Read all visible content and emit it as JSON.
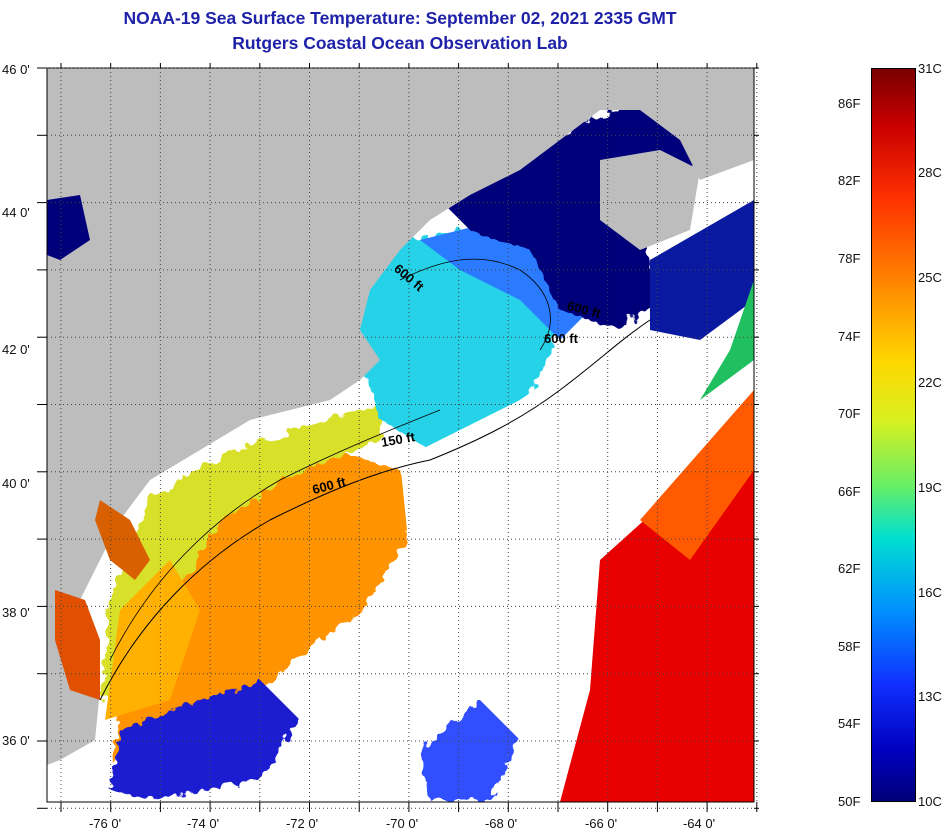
{
  "header": {
    "title": "NOAA-19 Sea Surface Temperature:  September 02, 2021 2335 GMT",
    "subtitle": "Rutgers Coastal Ocean Observation Lab"
  },
  "map": {
    "lat_labels": [
      "46 0'",
      "44 0'",
      "42 0'",
      "40 0'",
      "38 0'",
      "36 0'"
    ],
    "lon_labels": [
      "-76 0'",
      "-74 0'",
      "-72 0'",
      "-70 0'",
      "-68 0'",
      "-66 0'",
      "-64 0'"
    ],
    "contours": {
      "a": "600 ft",
      "b": "600 ft",
      "c": "600 ft",
      "d": "150 ft",
      "e": "600 ft"
    },
    "colors": {
      "land": "#bdbdbd",
      "cloud": "#ffffff",
      "cold": "#00007a",
      "warm": "#e80000"
    }
  },
  "colorbar": {
    "fahrenheit": [
      "86F",
      "82F",
      "78F",
      "74F",
      "70F",
      "66F",
      "62F",
      "58F",
      "54F",
      "50F"
    ],
    "celsius": [
      "31C",
      "28C",
      "25C",
      "22C",
      "19C",
      "16C",
      "13C",
      "10C"
    ]
  }
}
